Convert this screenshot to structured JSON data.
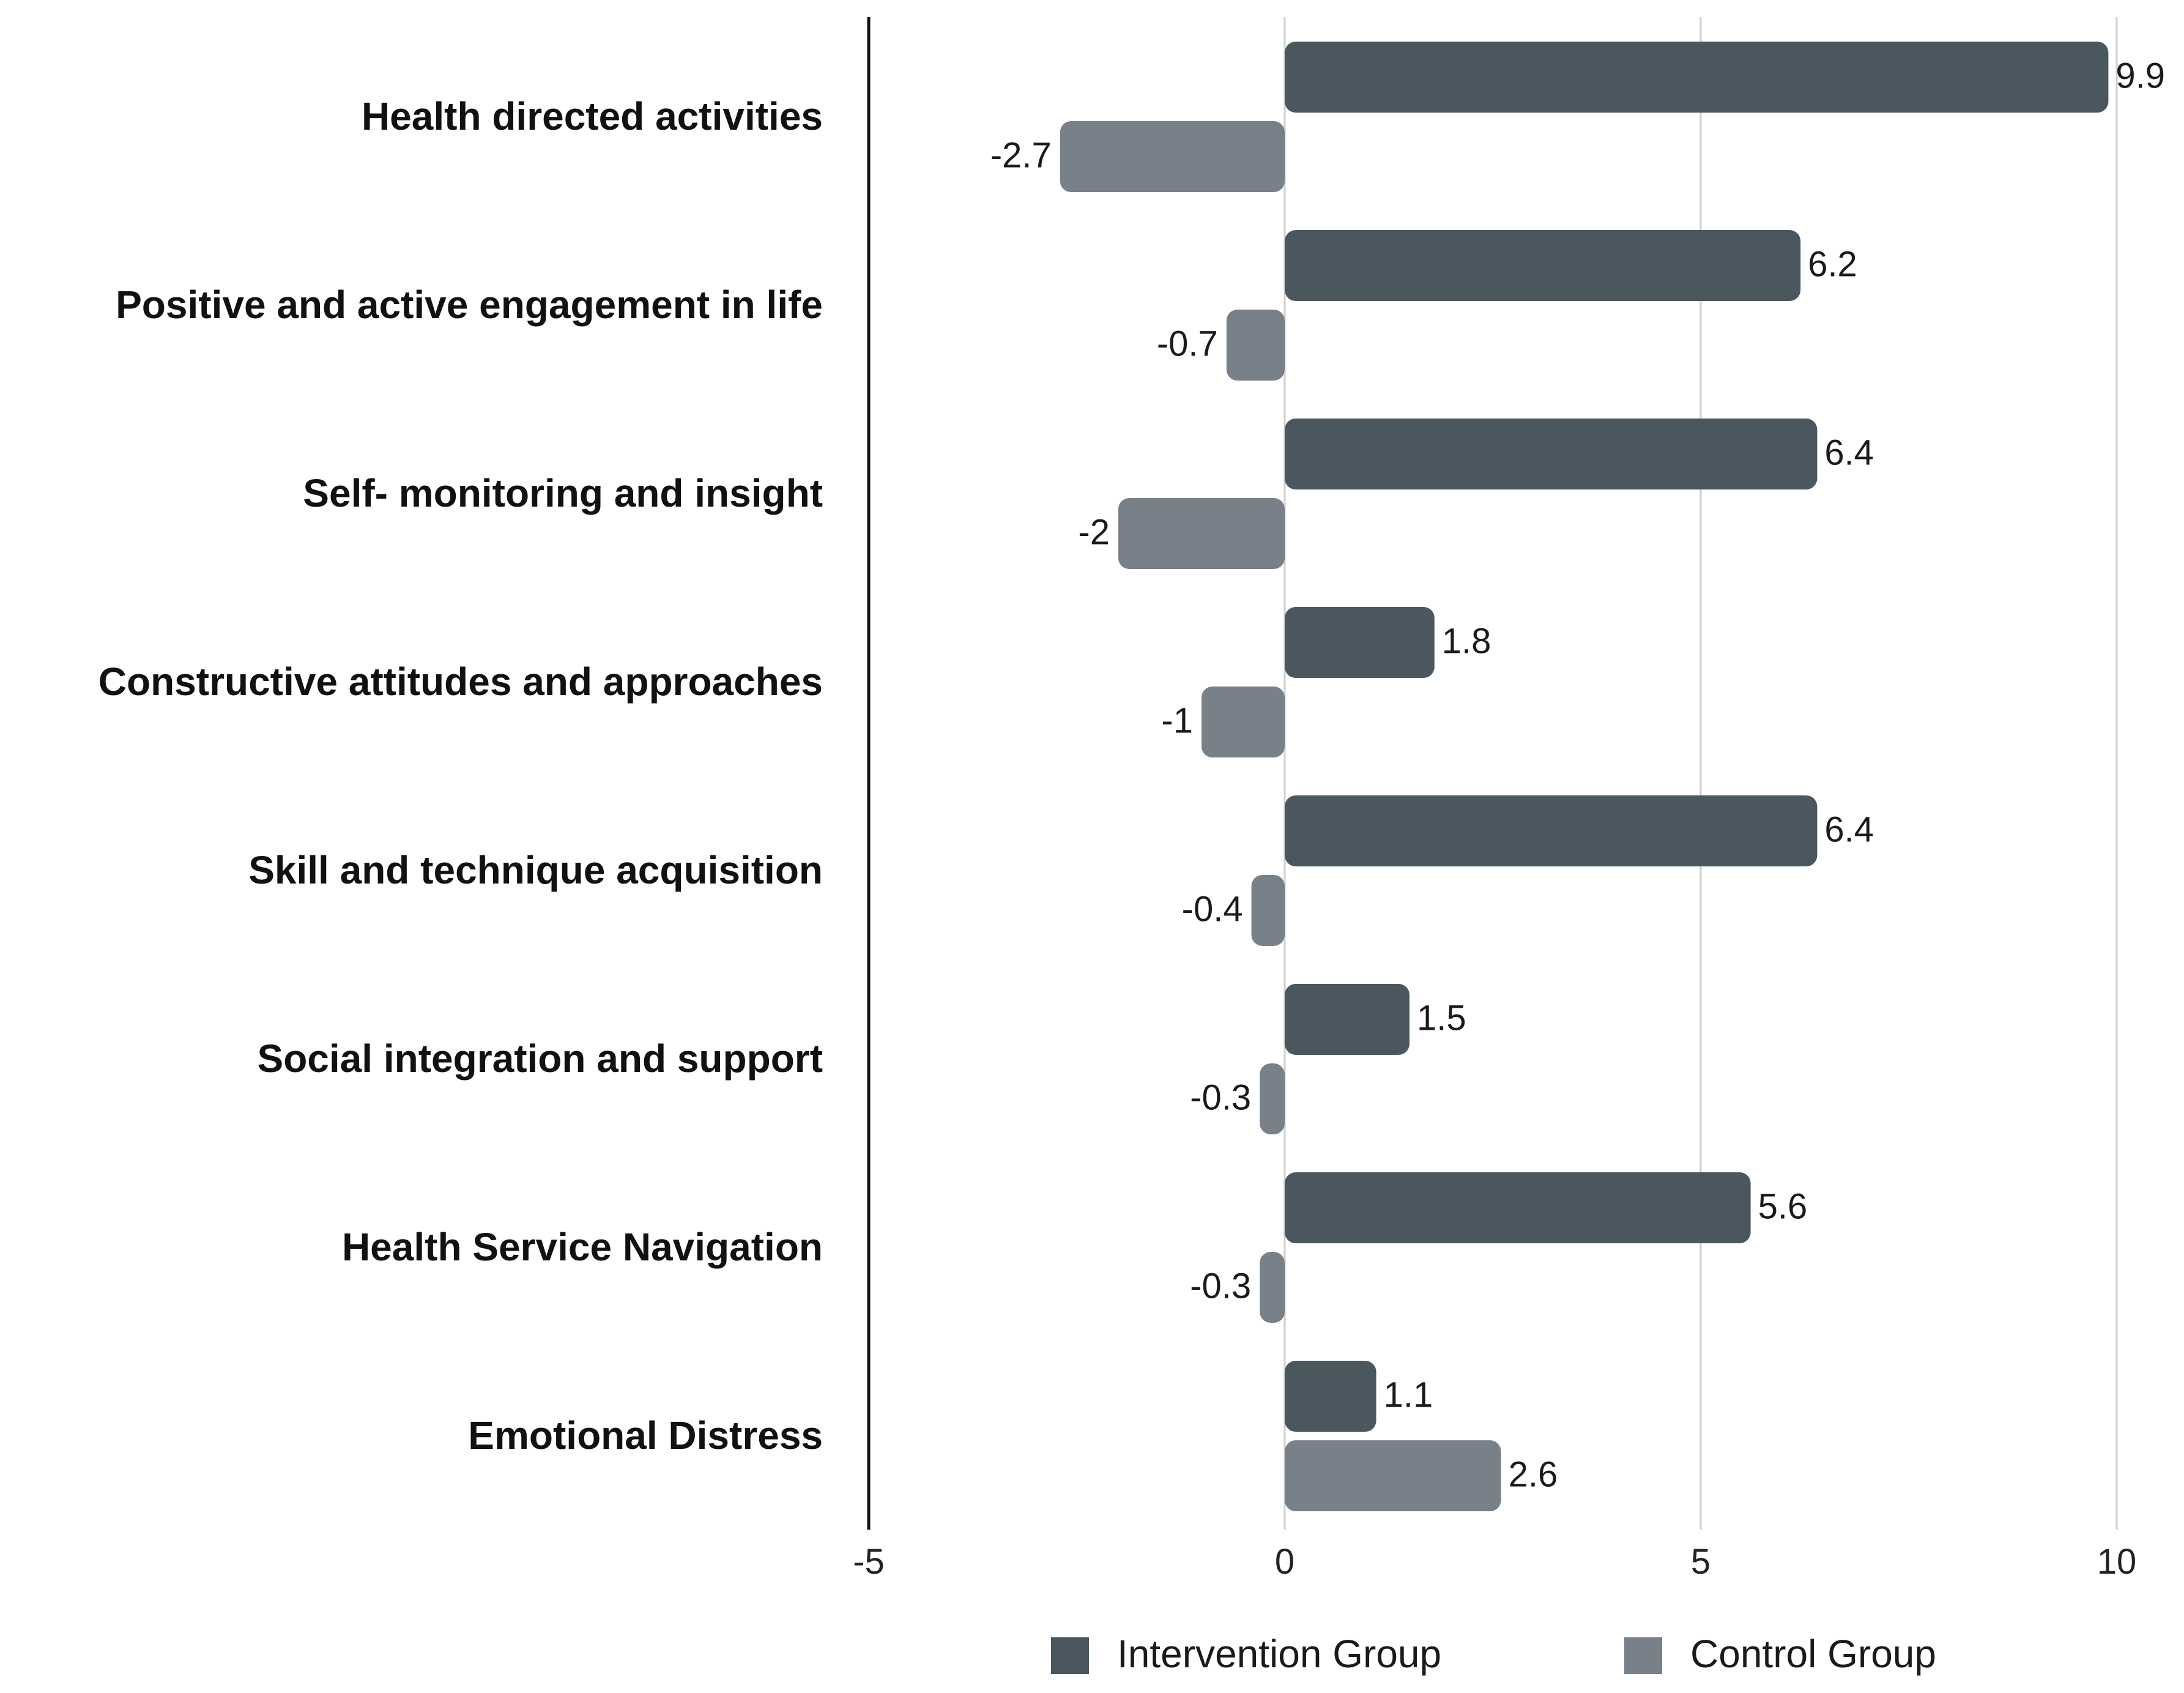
{
  "chart_data": {
    "type": "bar",
    "orientation": "horizontal",
    "title": "",
    "xlabel": "",
    "ylabel": "",
    "xlim": [
      -5,
      10
    ],
    "xticks": [
      -5,
      0,
      5,
      10
    ],
    "xtick_labels": [
      "-5",
      "0",
      "5",
      "10"
    ],
    "grid": "vertical gridlines at 5 and 10",
    "legend_position": "bottom",
    "categories": [
      "Health directed activities",
      "Positive and active engagement in life",
      "Self- monitoring and insight",
      "Constructive attitudes and approaches",
      "Skill and technique acquisition",
      "Social integration and support",
      "Health Service Navigation",
      "Emotional Distress"
    ],
    "series": [
      {
        "name": "Intervention Group",
        "color": "#4b575e",
        "values": [
          9.9,
          6.2,
          6.4,
          1.8,
          6.4,
          1.5,
          5.6,
          1.1
        ],
        "labels": [
          "9.9",
          "6.2",
          "6.4",
          "1.8",
          "6.4",
          "1.5",
          "5.6",
          "1.1"
        ]
      },
      {
        "name": "Control Group",
        "color": "#788089",
        "values": [
          -2.7,
          -0.7,
          -2,
          -1,
          -0.4,
          -0.3,
          -0.3,
          2.6
        ],
        "labels": [
          "-2.7",
          "-0.7",
          "-2",
          "-1",
          "-0.4",
          "-0.3",
          "-0.3",
          "2.6"
        ]
      }
    ]
  }
}
